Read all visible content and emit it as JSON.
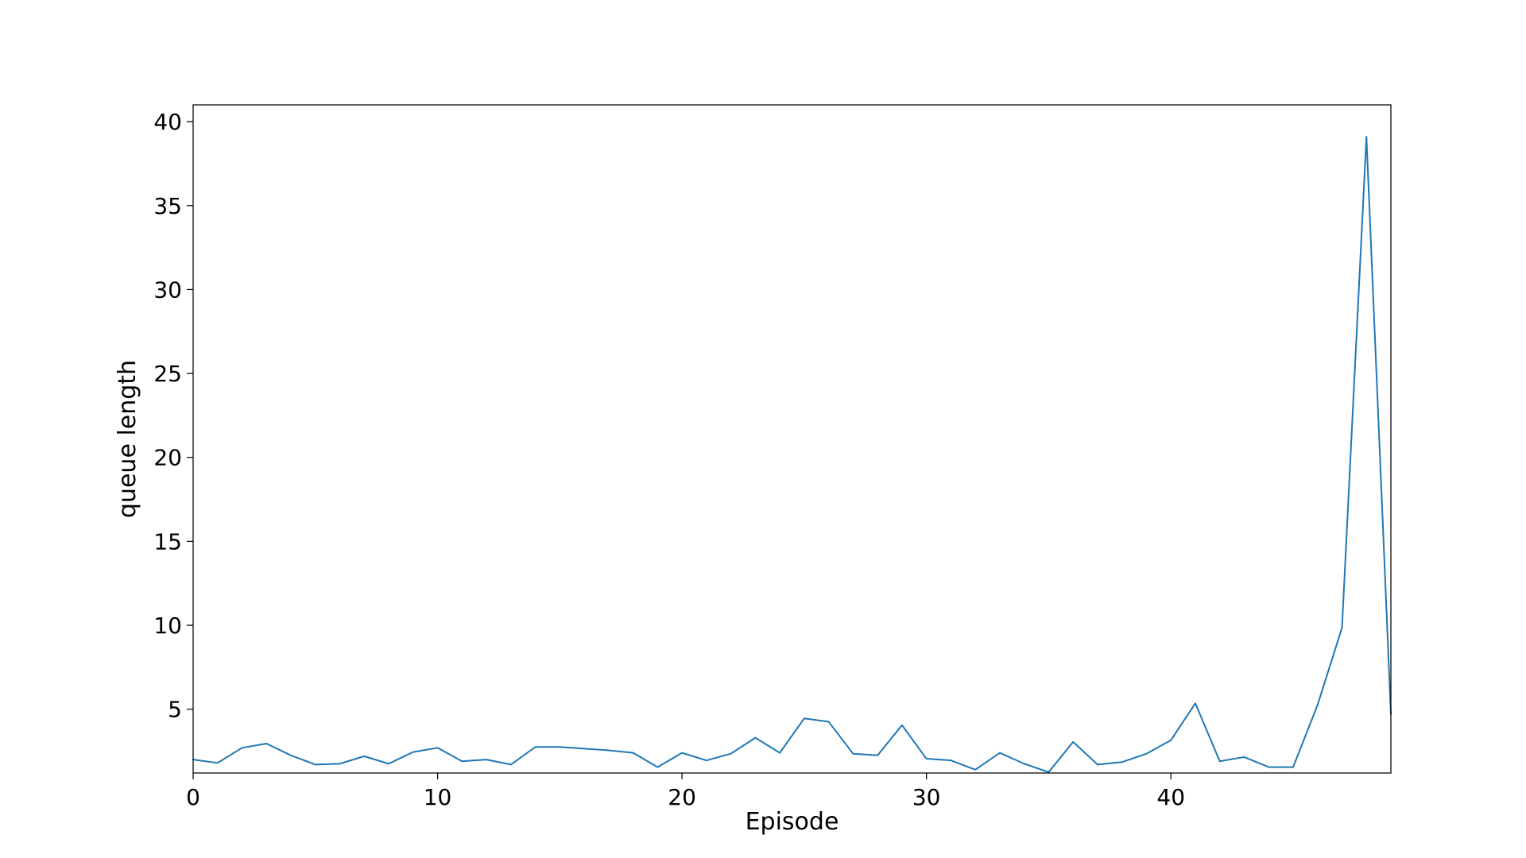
{
  "chart_data": {
    "type": "line",
    "title": "",
    "xlabel": "Episode",
    "ylabel": "queue length",
    "xlim": [
      0,
      49
    ],
    "ylim": [
      1.2,
      41
    ],
    "x_ticks": [
      0,
      10,
      20,
      30,
      40
    ],
    "y_ticks": [
      5,
      10,
      15,
      20,
      25,
      30,
      35,
      40
    ],
    "grid": false,
    "legend": "none",
    "series": [
      {
        "color": "#1f77b4",
        "x": [
          0,
          1,
          2,
          3,
          4,
          5,
          6,
          7,
          8,
          9,
          10,
          11,
          12,
          13,
          14,
          15,
          16,
          17,
          18,
          19,
          20,
          21,
          22,
          23,
          24,
          25,
          26,
          27,
          28,
          29,
          30,
          31,
          32,
          33,
          34,
          35,
          36,
          37,
          38,
          39,
          40,
          41,
          42,
          43,
          44,
          45,
          46,
          47,
          48,
          49
        ],
        "values": [
          2.0,
          1.8,
          2.7,
          2.95,
          2.25,
          1.7,
          1.75,
          2.2,
          1.75,
          2.45,
          2.7,
          1.9,
          2.0,
          1.7,
          2.75,
          2.75,
          2.65,
          2.55,
          2.4,
          1.55,
          2.4,
          1.95,
          2.35,
          3.3,
          2.4,
          4.45,
          4.25,
          2.35,
          2.25,
          4.05,
          2.05,
          1.95,
          1.4,
          2.4,
          1.75,
          1.25,
          3.05,
          1.7,
          1.85,
          2.35,
          3.15,
          5.35,
          1.9,
          2.15,
          1.55,
          1.55,
          5.25,
          9.85,
          39.1,
          4.7
        ]
      }
    ]
  }
}
